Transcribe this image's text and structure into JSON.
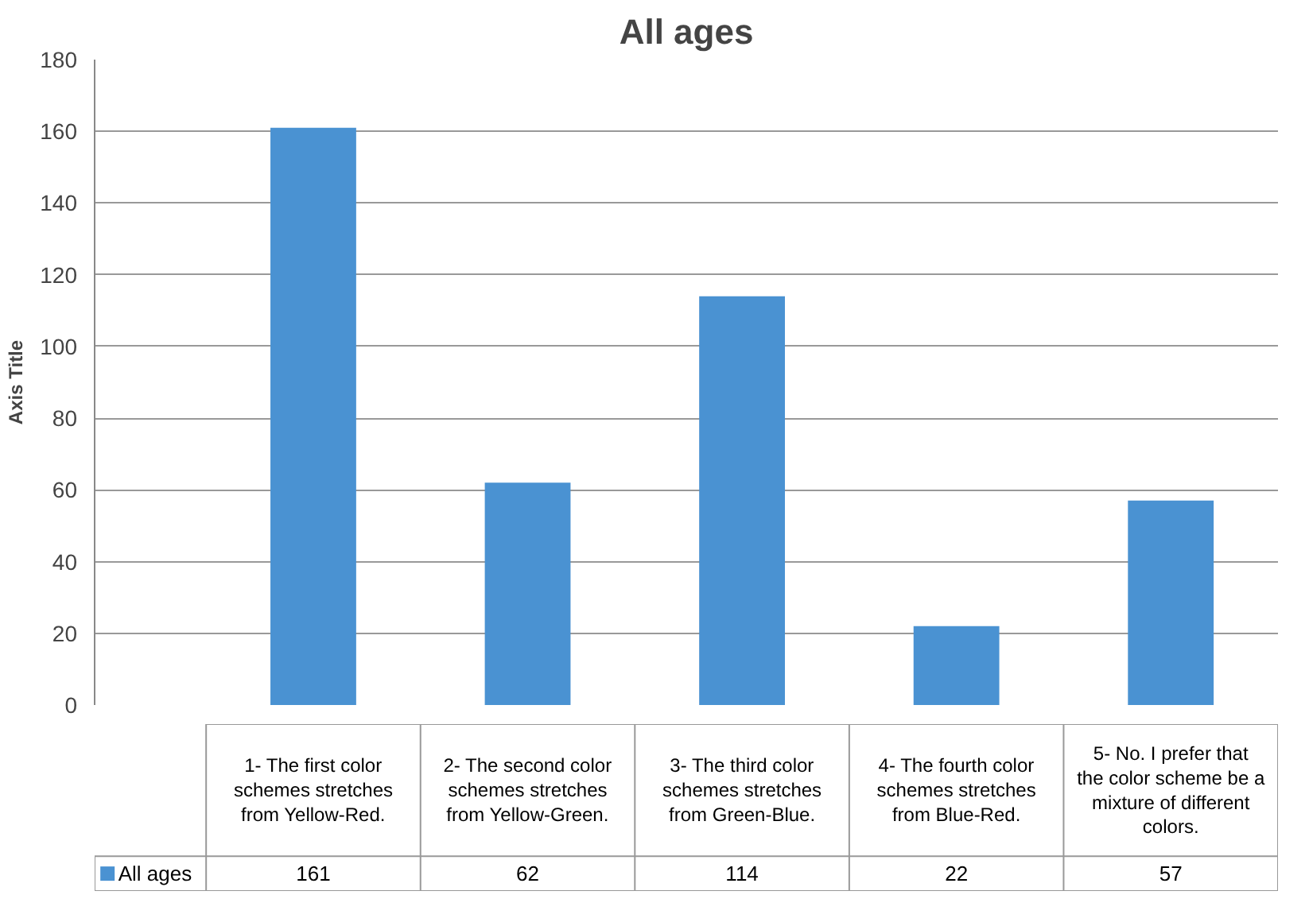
{
  "chart_data": {
    "type": "bar",
    "title": "All ages",
    "ylabel": "Axis Title",
    "categories": [
      "1- The first color schemes stretches from Yellow-Red.",
      "2- The second color schemes stretches from Yellow-Green.",
      "3- The third color schemes stretches from Green-Blue.",
      "4- The fourth color schemes stretches from Blue-Red.",
      "5- No. I prefer that the color scheme be a mixture of different colors."
    ],
    "series": [
      {
        "name": "All ages",
        "color": "#4a92d2",
        "values": [
          161,
          62,
          114,
          22,
          57
        ]
      }
    ],
    "ylim": [
      0,
      180
    ],
    "yticks": [
      0,
      20,
      40,
      60,
      80,
      100,
      120,
      140,
      160,
      180
    ],
    "grid": "y",
    "data_labels": true
  }
}
